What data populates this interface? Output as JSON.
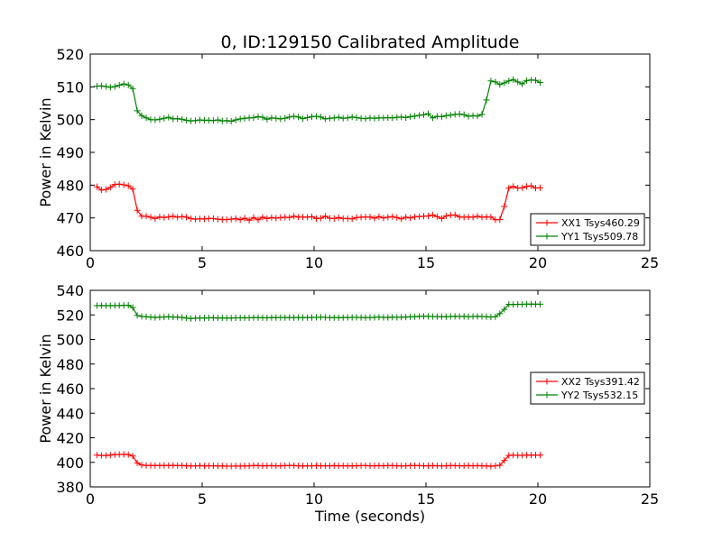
{
  "figure": {
    "title": "0, ID:129150 Calibrated Amplitude",
    "xlabel": "Time (seconds)"
  },
  "chart_data": [
    {
      "type": "line",
      "ylabel": "Power in Kelvin",
      "xlim": [
        0,
        25
      ],
      "ylim": [
        460,
        520
      ],
      "xticks": [
        0,
        5,
        10,
        15,
        20,
        25
      ],
      "yticks": [
        460,
        470,
        480,
        490,
        500,
        510,
        520
      ],
      "grid": false,
      "legend_position": "lower-right",
      "series": [
        {
          "name": "XX1 Tsys460.29",
          "color": "#ff0000",
          "marker": "plus",
          "x": [
            0.3,
            0.5,
            0.7,
            0.9,
            1.1,
            1.3,
            1.5,
            1.7,
            1.9,
            2.1,
            2.3,
            2.5,
            2.7,
            2.9,
            3.1,
            3.3,
            3.5,
            3.7,
            3.9,
            4.1,
            4.3,
            4.5,
            4.7,
            4.9,
            5.1,
            5.3,
            5.5,
            5.7,
            5.9,
            6.1,
            6.3,
            6.5,
            6.7,
            6.9,
            7.1,
            7.3,
            7.5,
            7.7,
            7.9,
            8.1,
            8.3,
            8.5,
            8.7,
            8.9,
            9.1,
            9.3,
            9.5,
            9.7,
            9.9,
            10.1,
            10.3,
            10.5,
            10.7,
            10.9,
            11.1,
            11.3,
            11.5,
            11.7,
            11.9,
            12.1,
            12.3,
            12.5,
            12.7,
            12.9,
            13.1,
            13.3,
            13.5,
            13.7,
            13.9,
            14.1,
            14.3,
            14.5,
            14.7,
            14.9,
            15.1,
            15.3,
            15.5,
            15.7,
            15.9,
            16.1,
            16.3,
            16.5,
            16.7,
            16.9,
            17.1,
            17.3,
            17.5,
            17.7,
            17.9,
            18.1,
            18.3,
            18.5,
            18.7,
            18.9,
            19.1,
            19.3,
            19.5,
            19.7,
            19.9,
            20.1
          ],
          "y": [
            479.5,
            478.5,
            478.7,
            479.3,
            480.2,
            480.3,
            480.1,
            479.8,
            478.8,
            472.3,
            470.5,
            470.5,
            470.2,
            469.8,
            470.3,
            470.1,
            470.3,
            470.5,
            470.2,
            470.4,
            470.2,
            469.8,
            469.6,
            469.7,
            469.7,
            469.8,
            469.8,
            469.6,
            469.5,
            469.5,
            469.6,
            469.8,
            469.4,
            469.9,
            469.3,
            470.1,
            469.4,
            470.2,
            469.8,
            470.1,
            469.9,
            470.1,
            470.2,
            470.1,
            470.5,
            470.2,
            470.3,
            470.2,
            470.4,
            469.8,
            469.9,
            470.5,
            469.9,
            469.8,
            470.1,
            469.8,
            469.8,
            469.7,
            470.1,
            470.2,
            470.3,
            470.3,
            469.9,
            470.4,
            470.0,
            470.2,
            470.4,
            470.1,
            469.7,
            470.2,
            470.0,
            470.3,
            470.4,
            470.5,
            470.6,
            470.9,
            470.4,
            469.8,
            470.6,
            470.8,
            470.9,
            470.3,
            470.2,
            470.3,
            470.2,
            470.5,
            470.2,
            470.3,
            470.3,
            469.4,
            469.5,
            473.5,
            479.1,
            479.6,
            479.1,
            479.2,
            479.6,
            479.8,
            479.1,
            479.2
          ]
        },
        {
          "name": "YY1 Tsys509.78",
          "color": "#008000",
          "marker": "plus",
          "x": [
            0.3,
            0.5,
            0.7,
            0.9,
            1.1,
            1.3,
            1.5,
            1.7,
            1.9,
            2.1,
            2.3,
            2.5,
            2.7,
            2.9,
            3.1,
            3.3,
            3.5,
            3.7,
            3.9,
            4.1,
            4.3,
            4.5,
            4.7,
            4.9,
            5.1,
            5.3,
            5.5,
            5.7,
            5.9,
            6.1,
            6.3,
            6.5,
            6.7,
            6.9,
            7.1,
            7.3,
            7.5,
            7.7,
            7.9,
            8.1,
            8.3,
            8.5,
            8.7,
            8.9,
            9.1,
            9.3,
            9.5,
            9.7,
            9.9,
            10.1,
            10.3,
            10.5,
            10.7,
            10.9,
            11.1,
            11.3,
            11.5,
            11.7,
            11.9,
            12.1,
            12.3,
            12.5,
            12.7,
            12.9,
            13.1,
            13.3,
            13.5,
            13.7,
            13.9,
            14.1,
            14.3,
            14.5,
            14.7,
            14.9,
            15.1,
            15.3,
            15.5,
            15.7,
            15.9,
            16.1,
            16.3,
            16.5,
            16.7,
            16.9,
            17.1,
            17.3,
            17.5,
            17.7,
            17.9,
            18.1,
            18.3,
            18.5,
            18.7,
            18.9,
            19.1,
            19.3,
            19.5,
            19.7,
            19.9,
            20.1
          ],
          "y": [
            510.2,
            510.3,
            510.1,
            509.9,
            510.1,
            510.5,
            510.9,
            510.6,
            509.5,
            502.7,
            501.2,
            500.5,
            500.0,
            499.9,
            500.1,
            500.4,
            500.7,
            500.2,
            500.3,
            500.1,
            499.8,
            499.6,
            499.7,
            499.9,
            499.8,
            499.8,
            499.7,
            499.9,
            499.6,
            499.7,
            499.5,
            499.9,
            500.2,
            500.4,
            500.5,
            500.6,
            500.9,
            500.7,
            500.1,
            500.5,
            500.4,
            500.2,
            500.4,
            500.8,
            501.0,
            500.8,
            500.3,
            500.6,
            500.9,
            501.0,
            500.8,
            500.2,
            500.4,
            500.5,
            500.7,
            500.4,
            500.5,
            500.8,
            500.6,
            500.4,
            500.3,
            500.5,
            500.4,
            500.5,
            500.5,
            500.6,
            500.5,
            500.7,
            500.8,
            500.6,
            500.9,
            501.1,
            501.3,
            501.5,
            501.8,
            500.5,
            501.0,
            500.9,
            501.2,
            501.4,
            501.6,
            501.7,
            501.5,
            501.0,
            501.2,
            501.1,
            501.6,
            506.0,
            511.8,
            511.5,
            510.7,
            511.2,
            511.8,
            512.2,
            511.5,
            510.9,
            511.9,
            512.1,
            512.0,
            511.3
          ]
        }
      ]
    },
    {
      "type": "line",
      "ylabel": "Power in Kelvin",
      "xlabel": "Time (seconds)",
      "xlim": [
        0,
        25
      ],
      "ylim": [
        380,
        540
      ],
      "xticks": [
        0,
        5,
        10,
        15,
        20,
        25
      ],
      "yticks": [
        380,
        400,
        420,
        440,
        460,
        480,
        500,
        520,
        540
      ],
      "grid": false,
      "legend_position": "center-right",
      "series": [
        {
          "name": "XX2 Tsys391.42",
          "color": "#ff0000",
          "marker": "plus",
          "x": [
            0.3,
            0.5,
            0.7,
            0.9,
            1.1,
            1.3,
            1.5,
            1.7,
            1.9,
            2.1,
            2.3,
            2.5,
            2.7,
            2.9,
            3.1,
            3.3,
            3.5,
            3.7,
            3.9,
            4.1,
            4.3,
            4.5,
            4.7,
            4.9,
            5.1,
            5.3,
            5.5,
            5.7,
            5.9,
            6.1,
            6.3,
            6.5,
            6.7,
            6.9,
            7.1,
            7.3,
            7.5,
            7.7,
            7.9,
            8.1,
            8.3,
            8.5,
            8.7,
            8.9,
            9.1,
            9.3,
            9.5,
            9.7,
            9.9,
            10.1,
            10.3,
            10.5,
            10.7,
            10.9,
            11.1,
            11.3,
            11.5,
            11.7,
            11.9,
            12.1,
            12.3,
            12.5,
            12.7,
            12.9,
            13.1,
            13.3,
            13.5,
            13.7,
            13.9,
            14.1,
            14.3,
            14.5,
            14.7,
            14.9,
            15.1,
            15.3,
            15.5,
            15.7,
            15.9,
            16.1,
            16.3,
            16.5,
            16.7,
            16.9,
            17.1,
            17.3,
            17.5,
            17.7,
            17.9,
            18.1,
            18.3,
            18.5,
            18.7,
            18.9,
            19.1,
            19.3,
            19.5,
            19.7,
            19.9,
            20.1
          ],
          "y": [
            405.8,
            405.6,
            405.6,
            405.9,
            406.2,
            406.4,
            406.5,
            406.3,
            405.2,
            399.5,
            397.8,
            397.5,
            397.4,
            397.4,
            397.5,
            397.4,
            397.5,
            397.5,
            397.3,
            397.4,
            397.2,
            397.0,
            397.1,
            397.3,
            397.0,
            397.2,
            397.2,
            397.0,
            397.0,
            396.9,
            396.9,
            397.0,
            396.9,
            397.1,
            397.2,
            397.4,
            397.3,
            397.2,
            397.2,
            397.3,
            397.1,
            397.2,
            397.3,
            397.4,
            397.3,
            397.2,
            397.0,
            397.1,
            397.2,
            397.3,
            397.2,
            397.2,
            397.1,
            397.3,
            397.2,
            397.2,
            397.1,
            397.2,
            397.2,
            397.3,
            397.3,
            397.2,
            397.2,
            397.3,
            397.2,
            397.3,
            397.3,
            397.2,
            397.1,
            397.2,
            397.3,
            397.3,
            397.3,
            397.2,
            397.2,
            397.3,
            397.2,
            397.1,
            397.2,
            397.3,
            397.3,
            397.2,
            397.2,
            397.3,
            397.2,
            397.3,
            397.2,
            397.0,
            396.8,
            397.2,
            397.6,
            401.5,
            405.6,
            405.8,
            405.7,
            405.7,
            405.8,
            405.9,
            405.8,
            405.8
          ]
        },
        {
          "name": "YY2 Tsys532.15",
          "color": "#008000",
          "marker": "plus",
          "x": [
            0.3,
            0.5,
            0.7,
            0.9,
            1.1,
            1.3,
            1.5,
            1.7,
            1.9,
            2.1,
            2.3,
            2.5,
            2.7,
            2.9,
            3.1,
            3.3,
            3.5,
            3.7,
            3.9,
            4.1,
            4.3,
            4.5,
            4.7,
            4.9,
            5.1,
            5.3,
            5.5,
            5.7,
            5.9,
            6.1,
            6.3,
            6.5,
            6.7,
            6.9,
            7.1,
            7.3,
            7.5,
            7.7,
            7.9,
            8.1,
            8.3,
            8.5,
            8.7,
            8.9,
            9.1,
            9.3,
            9.5,
            9.7,
            9.9,
            10.1,
            10.3,
            10.5,
            10.7,
            10.9,
            11.1,
            11.3,
            11.5,
            11.7,
            11.9,
            12.1,
            12.3,
            12.5,
            12.7,
            12.9,
            13.1,
            13.3,
            13.5,
            13.7,
            13.9,
            14.1,
            14.3,
            14.5,
            14.7,
            14.9,
            15.1,
            15.3,
            15.5,
            15.7,
            15.9,
            16.1,
            16.3,
            16.5,
            16.7,
            16.9,
            17.1,
            17.3,
            17.5,
            17.7,
            17.9,
            18.1,
            18.3,
            18.5,
            18.7,
            18.9,
            19.1,
            19.3,
            19.5,
            19.7,
            19.9,
            20.1
          ],
          "y": [
            527.5,
            527.6,
            527.5,
            527.6,
            527.5,
            527.7,
            527.8,
            527.9,
            526.0,
            519.5,
            518.8,
            518.6,
            518.2,
            517.9,
            518.1,
            518.3,
            518.5,
            518.3,
            518.2,
            517.9,
            517.4,
            517.0,
            517.3,
            517.5,
            517.5,
            517.6,
            517.7,
            517.5,
            517.6,
            517.5,
            517.5,
            517.6,
            517.6,
            517.7,
            517.6,
            517.8,
            517.8,
            517.7,
            517.6,
            517.8,
            517.8,
            517.9,
            517.8,
            517.9,
            517.8,
            517.9,
            517.8,
            517.8,
            517.9,
            518.0,
            518.1,
            518.0,
            517.8,
            517.8,
            517.7,
            517.8,
            517.9,
            518.0,
            518.0,
            517.9,
            517.8,
            517.9,
            518.0,
            518.1,
            518.0,
            517.9,
            518.2,
            518.0,
            518.1,
            518.3,
            518.4,
            518.6,
            518.8,
            518.9,
            518.8,
            518.7,
            518.6,
            518.5,
            518.6,
            518.7,
            518.8,
            518.7,
            518.8,
            518.6,
            518.7,
            518.8,
            518.7,
            518.5,
            518.3,
            518.6,
            521.0,
            524.5,
            528.6,
            528.5,
            528.6,
            528.6,
            528.8,
            528.8,
            528.7,
            528.7
          ]
        }
      ]
    }
  ]
}
